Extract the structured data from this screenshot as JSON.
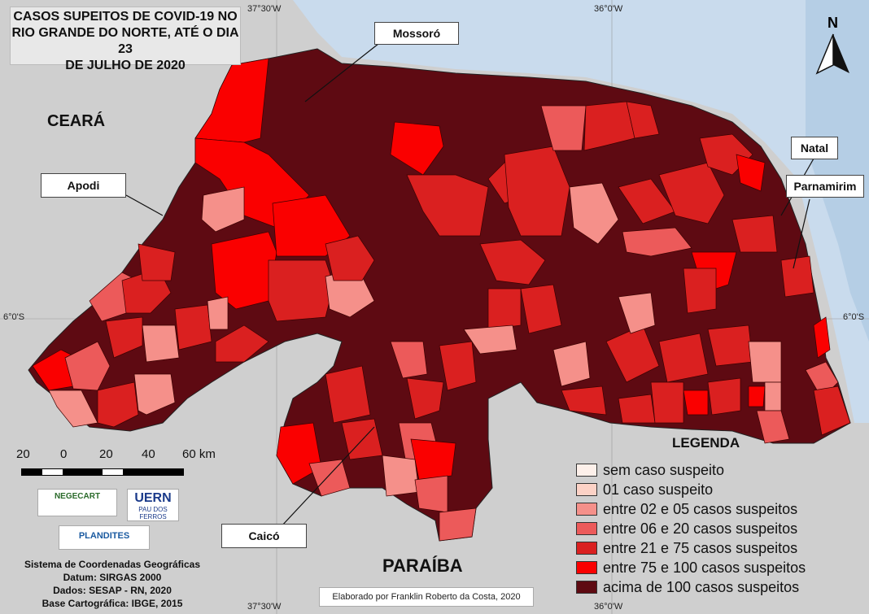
{
  "title": {
    "line1": "CASOS SUPEITOS DE COVID-19 NO",
    "line2": "RIO GRANDE DO NORTE, ATÉ O DIA 23",
    "line3": "DE JULHO DE 2020"
  },
  "north_arrow": {
    "letter": "N"
  },
  "coordinates": {
    "top_lon_left": "37°30'W",
    "top_lon_right": "36°0'W",
    "bottom_lon_left": "37°30'W",
    "bottom_lon_right": "36°0'W",
    "lat_left": "6°0'S",
    "lat_right": "6°0'S"
  },
  "neighbors": {
    "ceara": "CEARÁ",
    "paraiba": "PARAÍBA"
  },
  "city_labels": {
    "mossoro": "Mossoró",
    "apodi": "Apodi",
    "natal": "Natal",
    "parnamirim": "Parnamirim",
    "caico": "Caicó"
  },
  "legend": {
    "title": "LEGENDA",
    "items": [
      {
        "label": "sem caso suspeito",
        "color": "#fdf0ea"
      },
      {
        "label": "01 caso suspeito",
        "color": "#fcd2c6"
      },
      {
        "label": "entre 02 e 05 casos suspeitos",
        "color": "#f5908a"
      },
      {
        "label": "entre 06 e 20 casos suspeitos",
        "color": "#ec5a5a"
      },
      {
        "label": "entre 21 e 75 casos suspeitos",
        "color": "#da2020"
      },
      {
        "label": "entre 75 e 100 casos suspeitos",
        "color": "#fa0000"
      },
      {
        "label": "acima de 100 casos suspeitos",
        "color": "#5e0a12"
      }
    ]
  },
  "scale": {
    "labels": [
      "20",
      "0",
      "20",
      "40",
      "60 km"
    ]
  },
  "logos": {
    "negecart": "NEGECART",
    "uern": "UERN",
    "uern_sub": "PAU DOS FERROS",
    "plandites": "PLANDITES"
  },
  "info": {
    "line1": "Sistema de Coordenadas Geográficas",
    "line2": "Datum: SIRGAS 2000",
    "line3": "Dados: SESAP - RN, 2020",
    "line4": "Base Cartográfica: IBGE, 2015"
  },
  "credit": "Elaborado por Franklin Roberto da Costa, 2020",
  "colors": {
    "sea": "#c9dbed",
    "land": "#cfcfcf",
    "dark": "#5e0a12",
    "red": "#fa0000",
    "mid": "#da2020",
    "light": "#ec5a5a",
    "pale": "#f5908a",
    "very_pale": "#fcd2c6"
  }
}
